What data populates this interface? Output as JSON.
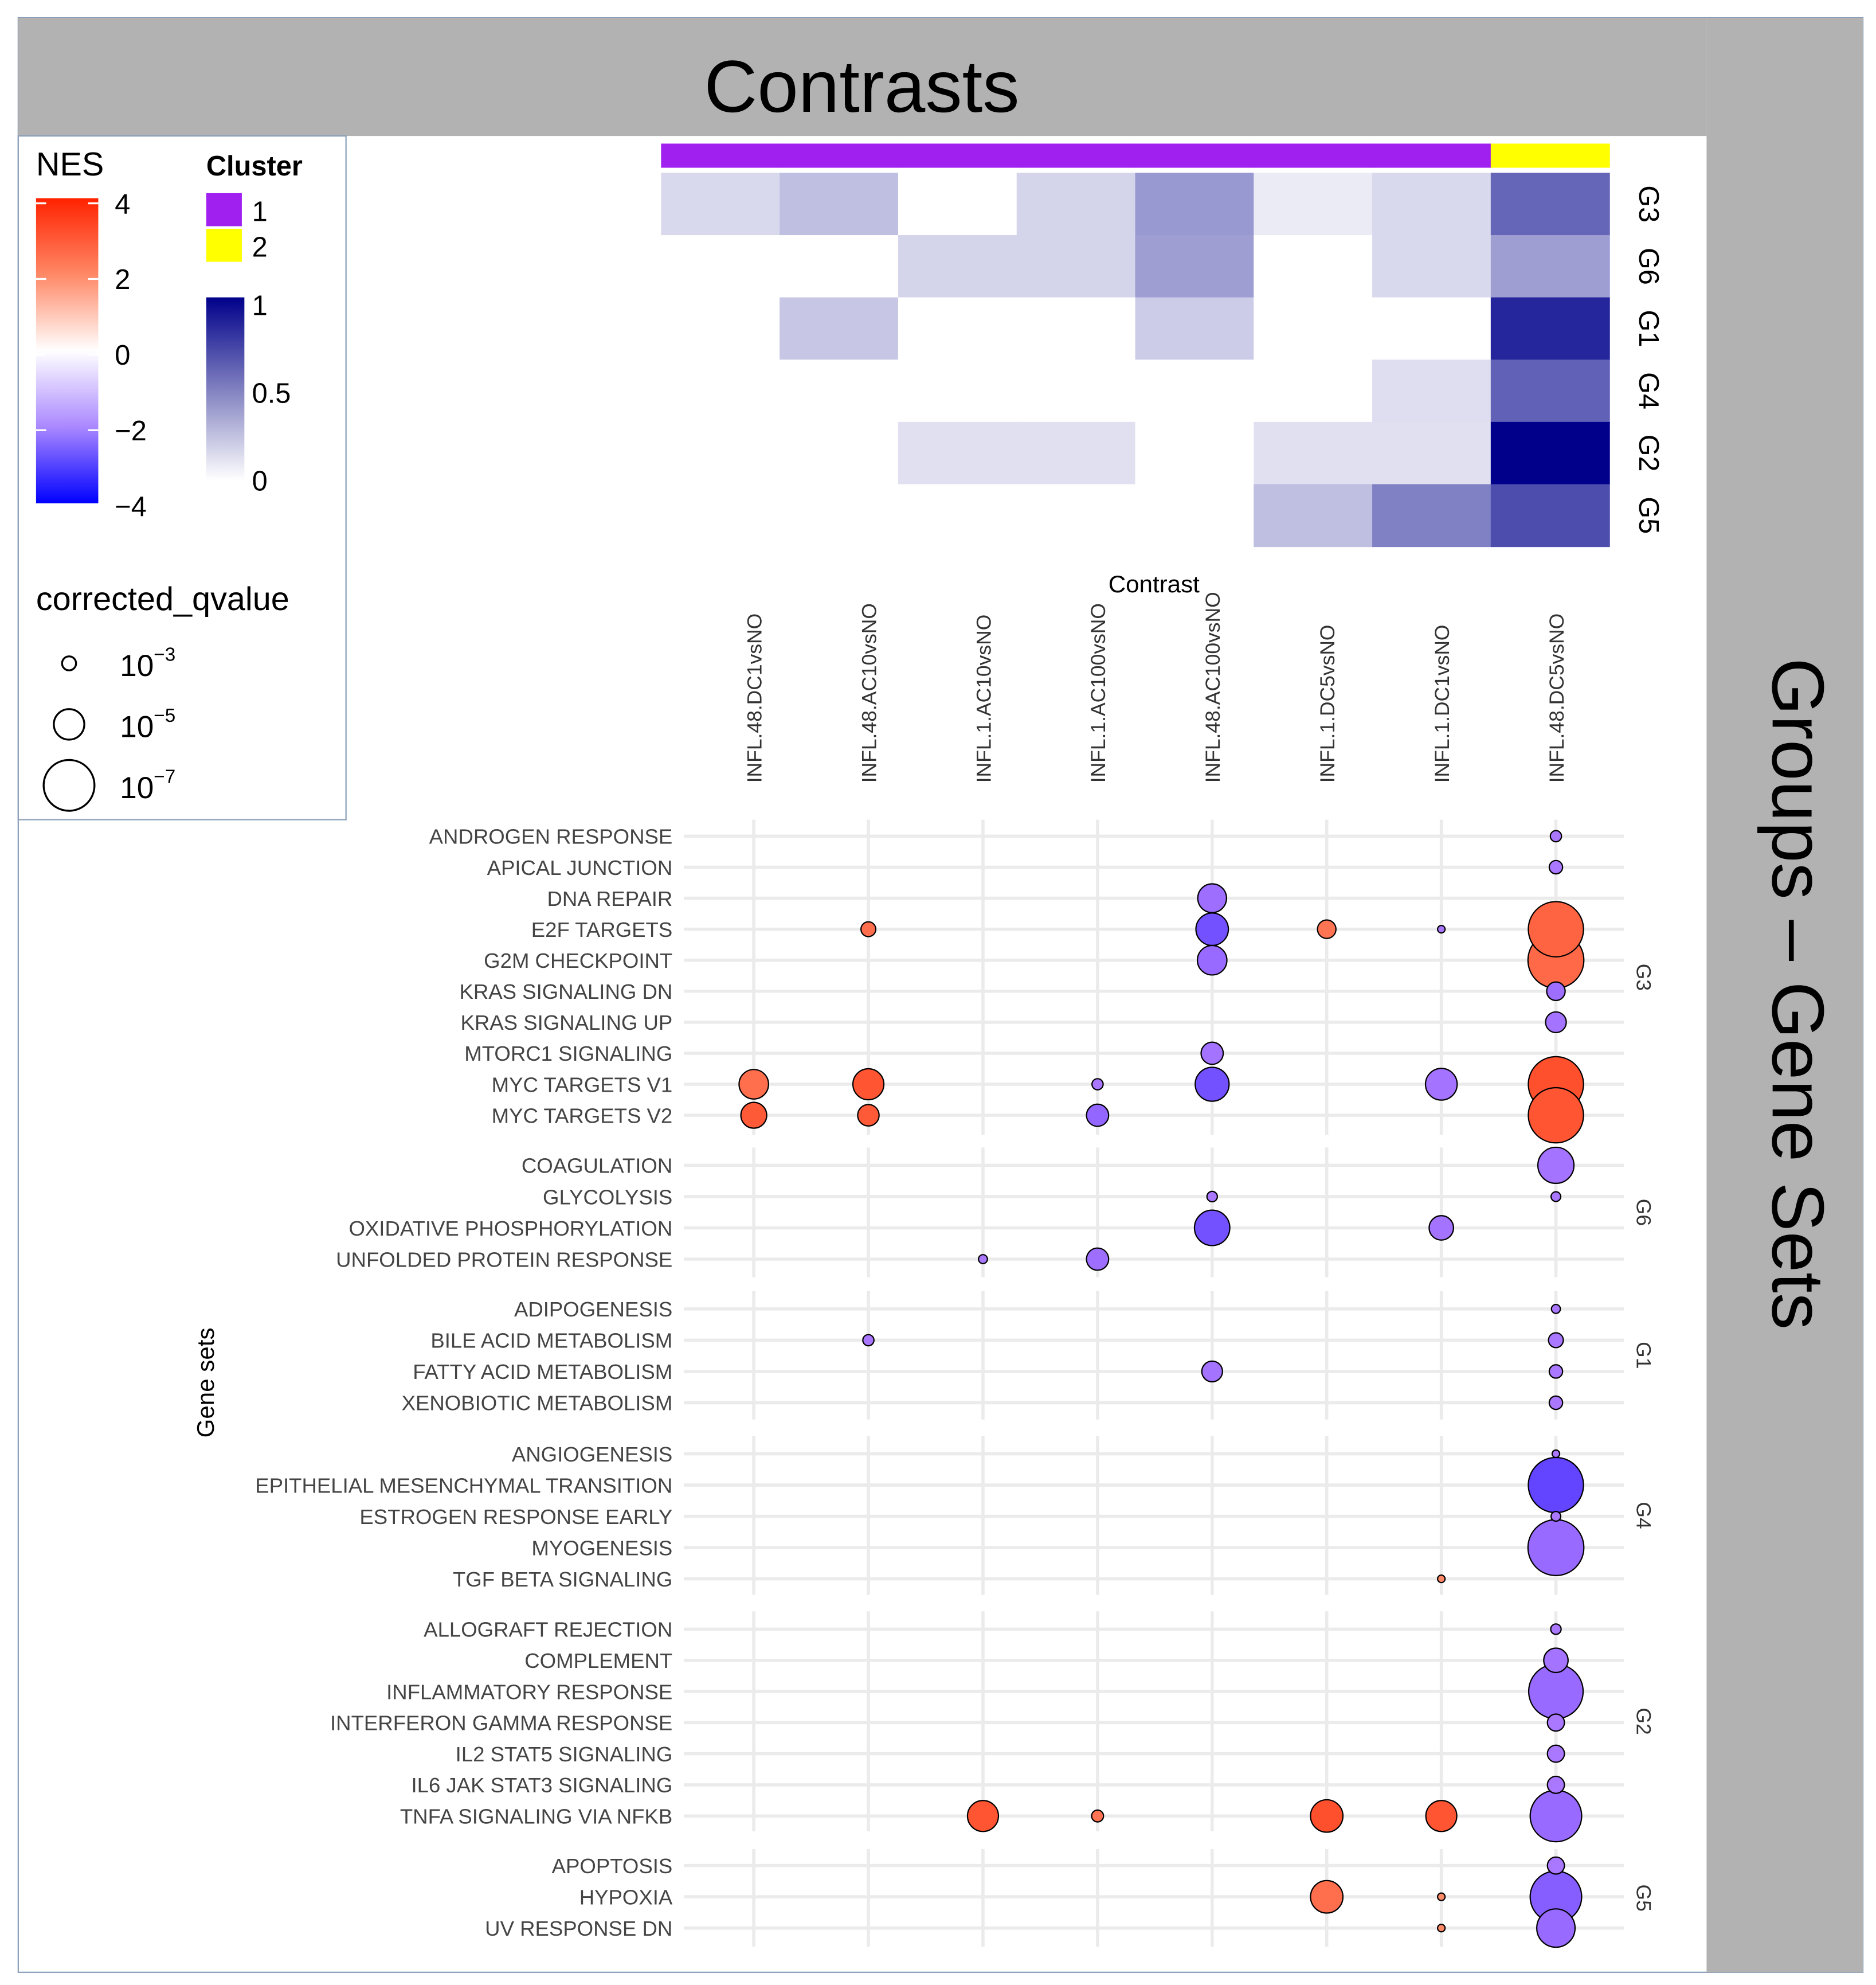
{
  "header": {
    "title": "Contrasts"
  },
  "side_panel": {
    "title": "Groups – Gene Sets"
  },
  "legend": {
    "nes": {
      "title": "NES",
      "ticks": [
        "4",
        "2",
        "0",
        "−2",
        "−4"
      ],
      "low_color": "#0000ff",
      "mid_color": "#ffffff",
      "high_color": "#ff2200"
    },
    "cluster": {
      "title": "Cluster",
      "items": [
        {
          "label": "1",
          "color": "#a020f0"
        },
        {
          "label": "2",
          "color": "#ffff00"
        }
      ],
      "scale_ticks": [
        "1",
        "0.5",
        "0"
      ],
      "scale_low_color": "#ffffff",
      "scale_high_color": "#00008b"
    },
    "qvalue": {
      "title": "corrected_qvalue",
      "items": [
        {
          "base": "10",
          "exp": "−3",
          "value": 0.001
        },
        {
          "base": "10",
          "exp": "−5",
          "value": 1e-05
        },
        {
          "base": "10",
          "exp": "−7",
          "value": 1e-07
        }
      ]
    }
  },
  "chart_data": [
    {
      "type": "heatmap",
      "description_role": "group-by-contrast overlap heatmap",
      "x_title": "Contrast",
      "contrasts": [
        "INFL.48.DC1vsNO",
        "INFL.48.AC10vsNO",
        "INFL.1.AC10vsNO",
        "INFL.1.AC100vsNO",
        "INFL.48.AC100vsNO",
        "INFL.1.DC5vsNO",
        "INFL.1.DC1vsNO",
        "INFL.48.DC5vsNO"
      ],
      "contrast_cluster": [
        1,
        1,
        1,
        1,
        1,
        1,
        1,
        2
      ],
      "groups": [
        "G3",
        "G6",
        "G1",
        "G4",
        "G2",
        "G5"
      ],
      "values": [
        [
          0.15,
          0.25,
          0.0,
          0.17,
          0.4,
          0.08,
          0.15,
          0.6
        ],
        [
          0.0,
          0.0,
          0.17,
          0.17,
          0.38,
          0.0,
          0.15,
          0.38
        ],
        [
          0.0,
          0.22,
          0.0,
          0.0,
          0.2,
          0.0,
          0.0,
          0.85
        ],
        [
          0.0,
          0.0,
          0.0,
          0.0,
          0.0,
          0.0,
          0.13,
          0.62
        ],
        [
          0.0,
          0.0,
          0.12,
          0.12,
          0.0,
          0.12,
          0.12,
          1.0
        ],
        [
          0.0,
          0.0,
          0.0,
          0.0,
          0.0,
          0.25,
          0.5,
          0.7
        ]
      ],
      "scale_range": [
        0,
        1
      ]
    },
    {
      "type": "scatter",
      "description_role": "dot plot of gene set enrichment (size = corrected q-value, color = NES)",
      "ylabel": "Gene sets",
      "size_variable": "corrected_qvalue",
      "color_variable": "NES",
      "nes_range": [
        -4,
        4
      ],
      "contrasts": [
        "INFL.48.DC1vsNO",
        "INFL.48.AC10vsNO",
        "INFL.1.AC10vsNO",
        "INFL.1.AC100vsNO",
        "INFL.48.AC100vsNO",
        "INFL.1.DC5vsNO",
        "INFL.1.DC1vsNO",
        "INFL.48.DC5vsNO"
      ],
      "groups": [
        {
          "name": "G3",
          "gene_sets": [
            "ANDROGEN RESPONSE",
            "APICAL JUNCTION",
            "DNA REPAIR",
            "E2F TARGETS",
            "G2M CHECKPOINT",
            "KRAS SIGNALING DN",
            "KRAS SIGNALING UP",
            "MTORC1 SIGNALING",
            "MYC TARGETS V1",
            "MYC TARGETS V2"
          ]
        },
        {
          "name": "G6",
          "gene_sets": [
            "COAGULATION",
            "GLYCOLYSIS",
            "OXIDATIVE PHOSPHORYLATION",
            "UNFOLDED PROTEIN RESPONSE"
          ]
        },
        {
          "name": "G1",
          "gene_sets": [
            "ADIPOGENESIS",
            "BILE ACID METABOLISM",
            "FATTY ACID METABOLISM",
            "XENOBIOTIC METABOLISM"
          ]
        },
        {
          "name": "G4",
          "gene_sets": [
            "ANGIOGENESIS",
            "EPITHELIAL MESENCHYMAL TRANSITION",
            "ESTROGEN RESPONSE EARLY",
            "MYOGENESIS",
            "TGF BETA SIGNALING"
          ]
        },
        {
          "name": "G2",
          "gene_sets": [
            "ALLOGRAFT REJECTION",
            "COMPLEMENT",
            "INFLAMMATORY RESPONSE",
            "INTERFERON GAMMA RESPONSE",
            "IL2 STAT5 SIGNALING",
            "IL6 JAK STAT3 SIGNALING",
            "TNFA SIGNALING VIA NFKB"
          ]
        },
        {
          "name": "G5",
          "gene_sets": [
            "APOPTOSIS",
            "HYPOXIA",
            "UV RESPONSE DN"
          ]
        }
      ],
      "points": [
        {
          "gene_set": "ANDROGEN RESPONSE",
          "contrast": "INFL.48.DC5vsNO",
          "nes": -2.0,
          "neg_log10_q": 2.5
        },
        {
          "gene_set": "APICAL JUNCTION",
          "contrast": "INFL.48.DC5vsNO",
          "nes": -2.0,
          "neg_log10_q": 2.8
        },
        {
          "gene_set": "DNA REPAIR",
          "contrast": "INFL.48.AC100vsNO",
          "nes": -2.2,
          "neg_log10_q": 4.9
        },
        {
          "gene_set": "E2F TARGETS",
          "contrast": "INFL.48.AC10vsNO",
          "nes": 2.5,
          "neg_log10_q": 3.0
        },
        {
          "gene_set": "E2F TARGETS",
          "contrast": "INFL.48.AC100vsNO",
          "nes": -2.9,
          "neg_log10_q": 5.4
        },
        {
          "gene_set": "E2F TARGETS",
          "contrast": "INFL.1.DC5vsNO",
          "nes": 2.4,
          "neg_log10_q": 3.5
        },
        {
          "gene_set": "E2F TARGETS",
          "contrast": "INFL.1.DC1vsNO",
          "nes": -2.0,
          "neg_log10_q": 2.0
        },
        {
          "gene_set": "E2F TARGETS",
          "contrast": "INFL.48.DC5vsNO",
          "nes": 2.7,
          "neg_log10_q": 8.5
        },
        {
          "gene_set": "G2M CHECKPOINT",
          "contrast": "INFL.48.AC100vsNO",
          "nes": -2.3,
          "neg_log10_q": 5.0
        },
        {
          "gene_set": "G2M CHECKPOINT",
          "contrast": "INFL.48.DC5vsNO",
          "nes": 2.6,
          "neg_log10_q": 8.6
        },
        {
          "gene_set": "KRAS SIGNALING DN",
          "contrast": "INFL.48.DC5vsNO",
          "nes": -2.2,
          "neg_log10_q": 3.5
        },
        {
          "gene_set": "KRAS SIGNALING UP",
          "contrast": "INFL.48.DC5vsNO",
          "nes": -2.1,
          "neg_log10_q": 3.8
        },
        {
          "gene_set": "MTORC1 SIGNALING",
          "contrast": "INFL.48.AC100vsNO",
          "nes": -2.1,
          "neg_log10_q": 4.0
        },
        {
          "gene_set": "MYC TARGETS V1",
          "contrast": "INFL.48.DC1vsNO",
          "nes": 2.5,
          "neg_log10_q": 5.0
        },
        {
          "gene_set": "MYC TARGETS V1",
          "contrast": "INFL.48.AC10vsNO",
          "nes": 3.0,
          "neg_log10_q": 5.2
        },
        {
          "gene_set": "MYC TARGETS V1",
          "contrast": "INFL.1.AC100vsNO",
          "nes": -2.0,
          "neg_log10_q": 2.5
        },
        {
          "gene_set": "MYC TARGETS V1",
          "contrast": "INFL.48.AC100vsNO",
          "nes": -2.9,
          "neg_log10_q": 5.6
        },
        {
          "gene_set": "MYC TARGETS V1",
          "contrast": "INFL.1.DC1vsNO",
          "nes": -2.1,
          "neg_log10_q": 5.3
        },
        {
          "gene_set": "MYC TARGETS V1",
          "contrast": "INFL.48.DC5vsNO",
          "nes": 3.1,
          "neg_log10_q": 8.5
        },
        {
          "gene_set": "MYC TARGETS V2",
          "contrast": "INFL.48.DC1vsNO",
          "nes": 2.9,
          "neg_log10_q": 4.5
        },
        {
          "gene_set": "MYC TARGETS V2",
          "contrast": "INFL.48.AC10vsNO",
          "nes": 2.9,
          "neg_log10_q": 3.9
        },
        {
          "gene_set": "MYC TARGETS V2",
          "contrast": "INFL.1.AC100vsNO",
          "nes": -2.4,
          "neg_log10_q": 4.0
        },
        {
          "gene_set": "MYC TARGETS V2",
          "contrast": "INFL.48.DC5vsNO",
          "nes": 3.0,
          "neg_log10_q": 8.5
        },
        {
          "gene_set": "COAGULATION",
          "contrast": "INFL.48.DC5vsNO",
          "nes": -2.1,
          "neg_log10_q": 5.9
        },
        {
          "gene_set": "GLYCOLYSIS",
          "contrast": "INFL.48.AC100vsNO",
          "nes": -2.0,
          "neg_log10_q": 2.4
        },
        {
          "gene_set": "GLYCOLYSIS",
          "contrast": "INFL.48.DC5vsNO",
          "nes": -2.0,
          "neg_log10_q": 2.3
        },
        {
          "gene_set": "OXIDATIVE PHOSPHORYLATION",
          "contrast": "INFL.48.AC100vsNO",
          "nes": -2.9,
          "neg_log10_q": 5.8
        },
        {
          "gene_set": "OXIDATIVE PHOSPHORYLATION",
          "contrast": "INFL.1.DC1vsNO",
          "nes": -2.1,
          "neg_log10_q": 4.3
        },
        {
          "gene_set": "UNFOLDED PROTEIN RESPONSE",
          "contrast": "INFL.1.AC10vsNO",
          "nes": -2.0,
          "neg_log10_q": 2.2
        },
        {
          "gene_set": "UNFOLDED PROTEIN RESPONSE",
          "contrast": "INFL.1.AC100vsNO",
          "nes": -2.2,
          "neg_log10_q": 4.0
        },
        {
          "gene_set": "ADIPOGENESIS",
          "contrast": "INFL.48.DC5vsNO",
          "nes": -2.0,
          "neg_log10_q": 2.2
        },
        {
          "gene_set": "BILE ACID METABOLISM",
          "contrast": "INFL.48.AC10vsNO",
          "nes": -2.0,
          "neg_log10_q": 2.5
        },
        {
          "gene_set": "BILE ACID METABOLISM",
          "contrast": "INFL.48.DC5vsNO",
          "nes": -2.0,
          "neg_log10_q": 3.0
        },
        {
          "gene_set": "FATTY ACID METABOLISM",
          "contrast": "INFL.48.AC100vsNO",
          "nes": -2.1,
          "neg_log10_q": 3.8
        },
        {
          "gene_set": "FATTY ACID METABOLISM",
          "contrast": "INFL.48.DC5vsNO",
          "nes": -2.0,
          "neg_log10_q": 2.8
        },
        {
          "gene_set": "XENOBIOTIC METABOLISM",
          "contrast": "INFL.48.DC5vsNO",
          "nes": -2.0,
          "neg_log10_q": 2.8
        },
        {
          "gene_set": "ANGIOGENESIS",
          "contrast": "INFL.48.DC5vsNO",
          "nes": -2.0,
          "neg_log10_q": 2.0
        },
        {
          "gene_set": "EPITHELIAL MESENCHYMAL TRANSITION",
          "contrast": "INFL.48.DC5vsNO",
          "nes": -3.2,
          "neg_log10_q": 8.5
        },
        {
          "gene_set": "ESTROGEN RESPONSE EARLY",
          "contrast": "INFL.48.DC5vsNO",
          "nes": -2.0,
          "neg_log10_q": 2.3
        },
        {
          "gene_set": "MYOGENESIS",
          "contrast": "INFL.48.DC5vsNO",
          "nes": -2.3,
          "neg_log10_q": 8.6
        },
        {
          "gene_set": "TGF BETA SIGNALING",
          "contrast": "INFL.1.DC1vsNO",
          "nes": 2.0,
          "neg_log10_q": 2.0
        },
        {
          "gene_set": "ALLOGRAFT REJECTION",
          "contrast": "INFL.48.DC5vsNO",
          "nes": -2.0,
          "neg_log10_q": 2.4
        },
        {
          "gene_set": "COMPLEMENT",
          "contrast": "INFL.48.DC5vsNO",
          "nes": -2.1,
          "neg_log10_q": 4.3
        },
        {
          "gene_set": "INFLAMMATORY RESPONSE",
          "contrast": "INFL.48.DC5vsNO",
          "nes": -2.3,
          "neg_log10_q": 8.4
        },
        {
          "gene_set": "INTERFERON GAMMA RESPONSE",
          "contrast": "INFL.48.DC5vsNO",
          "nes": -2.0,
          "neg_log10_q": 3.3
        },
        {
          "gene_set": "IL2 STAT5 SIGNALING",
          "contrast": "INFL.48.DC5vsNO",
          "nes": -2.0,
          "neg_log10_q": 3.3
        },
        {
          "gene_set": "IL6 JAK STAT3 SIGNALING",
          "contrast": "INFL.48.DC5vsNO",
          "nes": -2.0,
          "neg_log10_q": 3.3
        },
        {
          "gene_set": "TNFA SIGNALING VIA NFKB",
          "contrast": "INFL.1.AC10vsNO",
          "nes": 3.0,
          "neg_log10_q": 5.2
        },
        {
          "gene_set": "TNFA SIGNALING VIA NFKB",
          "contrast": "INFL.1.AC100vsNO",
          "nes": 2.4,
          "neg_log10_q": 2.6
        },
        {
          "gene_set": "TNFA SIGNALING VIA NFKB",
          "contrast": "INFL.1.DC5vsNO",
          "nes": 3.1,
          "neg_log10_q": 5.4
        },
        {
          "gene_set": "TNFA SIGNALING VIA NFKB",
          "contrast": "INFL.1.DC1vsNO",
          "nes": 3.0,
          "neg_log10_q": 5.2
        },
        {
          "gene_set": "TNFA SIGNALING VIA NFKB",
          "contrast": "INFL.48.DC5vsNO",
          "nes": -2.3,
          "neg_log10_q": 8.0
        },
        {
          "gene_set": "APOPTOSIS",
          "contrast": "INFL.48.DC5vsNO",
          "nes": -2.0,
          "neg_log10_q": 3.3
        },
        {
          "gene_set": "HYPOXIA",
          "contrast": "INFL.1.DC5vsNO",
          "nes": 2.5,
          "neg_log10_q": 5.4
        },
        {
          "gene_set": "HYPOXIA",
          "contrast": "INFL.1.DC1vsNO",
          "nes": 2.0,
          "neg_log10_q": 2.0
        },
        {
          "gene_set": "HYPOXIA",
          "contrast": "INFL.48.DC5vsNO",
          "nes": -2.6,
          "neg_log10_q": 8.0
        },
        {
          "gene_set": "UV RESPONSE DN",
          "contrast": "INFL.1.DC1vsNO",
          "nes": 2.0,
          "neg_log10_q": 2.0
        },
        {
          "gene_set": "UV RESPONSE DN",
          "contrast": "INFL.48.DC5vsNO",
          "nes": -2.3,
          "neg_log10_q": 6.2
        }
      ]
    }
  ]
}
